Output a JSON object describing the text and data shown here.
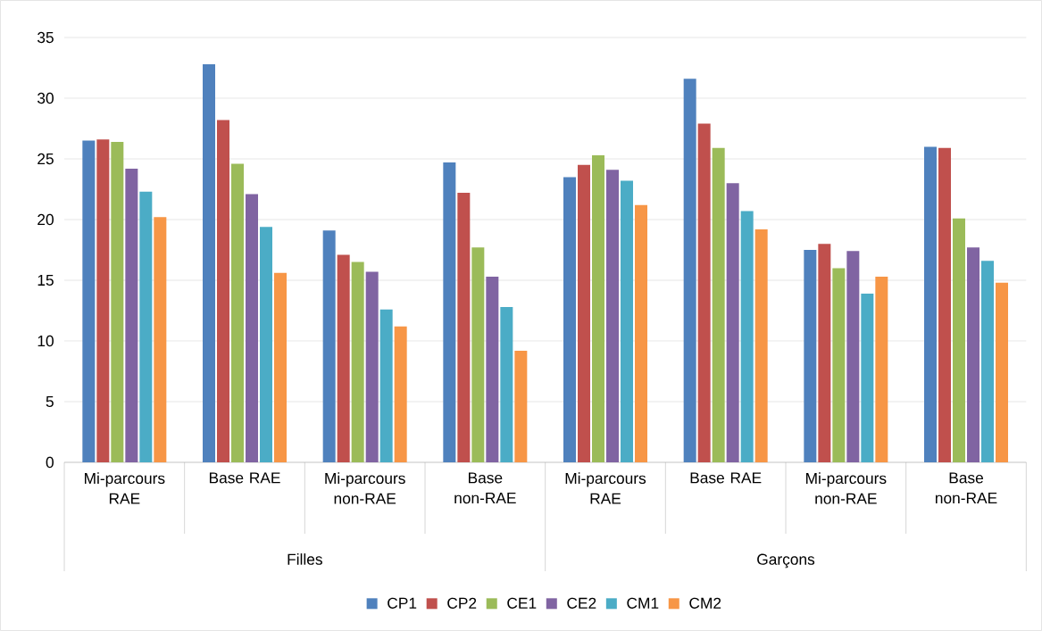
{
  "chart_data": {
    "type": "bar",
    "categories": [
      "Mi-parcours RAE",
      "Base RAE",
      "Mi-parcours non-RAE",
      "Base non-RAE",
      "Mi-parcours RAE",
      "Base RAE",
      "Mi-parcours non-RAE",
      "Base non-RAE"
    ],
    "series": [
      {
        "name": "CP1",
        "color": "#4f81bd",
        "values": [
          26.5,
          32.8,
          19.1,
          24.7,
          23.5,
          31.6,
          17.5,
          26.0
        ]
      },
      {
        "name": "CP2",
        "color": "#c0504d",
        "values": [
          26.6,
          28.2,
          17.1,
          22.2,
          24.5,
          27.9,
          18.0,
          25.9
        ]
      },
      {
        "name": "CE1",
        "color": "#9bbb59",
        "values": [
          26.4,
          24.6,
          16.5,
          17.7,
          25.3,
          25.9,
          16.0,
          20.1
        ]
      },
      {
        "name": "CE2",
        "color": "#8064a2",
        "values": [
          24.2,
          22.1,
          15.7,
          15.3,
          24.1,
          23.0,
          17.4,
          17.7
        ]
      },
      {
        "name": "CM1",
        "color": "#4bacc6",
        "values": [
          22.3,
          19.4,
          12.6,
          12.8,
          23.2,
          20.7,
          13.9,
          16.6
        ]
      },
      {
        "name": "CM2",
        "color": "#f79646",
        "values": [
          20.2,
          15.6,
          11.2,
          9.2,
          21.2,
          19.2,
          15.3,
          14.8
        ]
      }
    ],
    "annotations": [
      "Filles",
      "Garçons"
    ],
    "ylim": [
      0,
      35
    ],
    "yticks": [
      0,
      5,
      10,
      15,
      20,
      25,
      30,
      35
    ],
    "grid": "y",
    "legend": "bottom"
  }
}
